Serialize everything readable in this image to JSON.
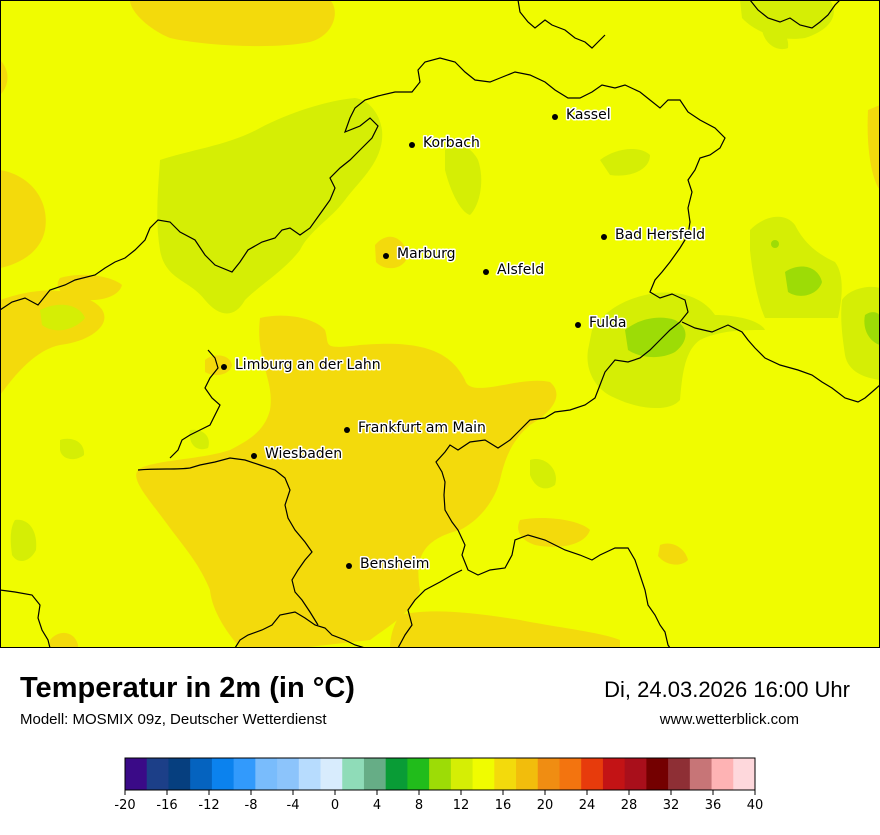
{
  "map": {
    "cities": [
      {
        "name": "Kassel"
      },
      {
        "name": "Korbach"
      },
      {
        "name": "Bad Hersfeld"
      },
      {
        "name": "Marburg"
      },
      {
        "name": "Alsfeld"
      },
      {
        "name": "Fulda"
      },
      {
        "name": "Limburg an der Lahn"
      },
      {
        "name": "Frankfurt am Main"
      },
      {
        "name": "Wiesbaden"
      },
      {
        "name": "Bensheim"
      }
    ]
  },
  "header": {
    "title": "Temperatur in 2m (in °C)",
    "subtitle": "Modell: MOSMIX 09z, Deutscher Wetterdienst",
    "datetime": "Di, 24.03.2026 16:00 Uhr",
    "website": "www.wetterblick.com"
  },
  "legend": {
    "ticks": [
      "-20",
      "-16",
      "-12",
      "-8",
      "-4",
      "0",
      "4",
      "8",
      "12",
      "16",
      "20",
      "24",
      "28",
      "32",
      "36",
      "40"
    ],
    "colors": [
      "#3a0a87",
      "#1c3f88",
      "#063f7f",
      "#0563bf",
      "#0b82ee",
      "#329afc",
      "#79bcfc",
      "#8cc4fb",
      "#b7dcfe",
      "#d8ecfd",
      "#8fdcb8",
      "#66ad86",
      "#099c36",
      "#21bc1b",
      "#9ddc06",
      "#d5ee05",
      "#f0fc00",
      "#f3da0c",
      "#f2bd0c",
      "#f08d12",
      "#f3740f",
      "#e73b0c",
      "#c31315",
      "#a90f1b",
      "#740000",
      "#8e2f35",
      "#c77577",
      "#feb3b4",
      "#fed8dc"
    ]
  }
}
